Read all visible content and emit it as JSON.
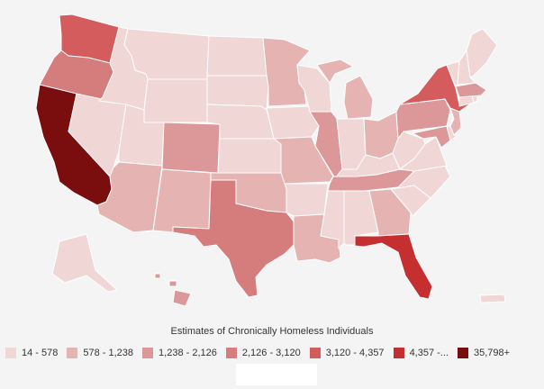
{
  "legend": {
    "title": "Estimates of Chronically Homeless Individuals",
    "bins": [
      {
        "label": "14 - 578",
        "color": "#f1d6d6"
      },
      {
        "label": "578 - 1,238",
        "color": "#e6b3b3"
      },
      {
        "label": "1,238 - 2,126",
        "color": "#dc9898"
      },
      {
        "label": "2,126 - 3,120",
        "color": "#d57c7c"
      },
      {
        "label": "3,120 - 4,357",
        "color": "#d45c5c"
      },
      {
        "label": "4,357 -...",
        "color": "#c62f2f"
      },
      {
        "label": "35,798+",
        "color": "#7a0d0d"
      }
    ]
  },
  "states": [
    {
      "id": "WA",
      "bin": 4
    },
    {
      "id": "OR",
      "bin": 3
    },
    {
      "id": "CA",
      "bin": 6
    },
    {
      "id": "ID",
      "bin": 0
    },
    {
      "id": "NV",
      "bin": 0
    },
    {
      "id": "MT",
      "bin": 0
    },
    {
      "id": "WY",
      "bin": 0
    },
    {
      "id": "UT",
      "bin": 0
    },
    {
      "id": "AZ",
      "bin": 1
    },
    {
      "id": "CO",
      "bin": 2
    },
    {
      "id": "NM",
      "bin": 1
    },
    {
      "id": "ND",
      "bin": 0
    },
    {
      "id": "SD",
      "bin": 0
    },
    {
      "id": "NE",
      "bin": 0
    },
    {
      "id": "KS",
      "bin": 0
    },
    {
      "id": "OK",
      "bin": 1
    },
    {
      "id": "TX",
      "bin": 3
    },
    {
      "id": "MN",
      "bin": 1
    },
    {
      "id": "IA",
      "bin": 0
    },
    {
      "id": "MO",
      "bin": 1
    },
    {
      "id": "AR",
      "bin": 0
    },
    {
      "id": "LA",
      "bin": 1
    },
    {
      "id": "WI",
      "bin": 0
    },
    {
      "id": "IL",
      "bin": 2
    },
    {
      "id": "MI",
      "bin": 1
    },
    {
      "id": "IN",
      "bin": 0
    },
    {
      "id": "OH",
      "bin": 1
    },
    {
      "id": "KY",
      "bin": 0
    },
    {
      "id": "TN",
      "bin": 2
    },
    {
      "id": "MS",
      "bin": 0
    },
    {
      "id": "AL",
      "bin": 0
    },
    {
      "id": "GA",
      "bin": 1
    },
    {
      "id": "FL",
      "bin": 5
    },
    {
      "id": "SC",
      "bin": 0
    },
    {
      "id": "NC",
      "bin": 0
    },
    {
      "id": "VA",
      "bin": 0
    },
    {
      "id": "WV",
      "bin": 0
    },
    {
      "id": "PA",
      "bin": 2
    },
    {
      "id": "NY",
      "bin": 4
    },
    {
      "id": "NJ",
      "bin": 1
    },
    {
      "id": "DE",
      "bin": 0
    },
    {
      "id": "MD",
      "bin": 2
    },
    {
      "id": "CT",
      "bin": 0
    },
    {
      "id": "RI",
      "bin": 0
    },
    {
      "id": "MA",
      "bin": 2
    },
    {
      "id": "VT",
      "bin": 0
    },
    {
      "id": "NH",
      "bin": 0
    },
    {
      "id": "ME",
      "bin": 0
    },
    {
      "id": "AK",
      "bin": 0
    },
    {
      "id": "HI",
      "bin": 2
    },
    {
      "id": "PR",
      "bin": 0
    }
  ]
}
